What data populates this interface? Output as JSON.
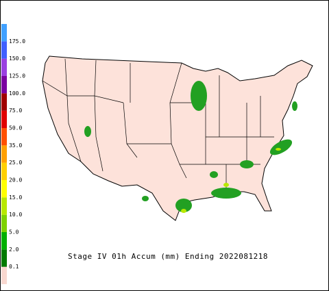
{
  "legend": {
    "labels": [
      "0.1",
      "2.0",
      "5.0",
      "10.0",
      "15.0",
      "20.0",
      "25.0",
      "35.0",
      "50.0",
      "75.0",
      "100.0",
      "125.0",
      "150.0",
      "175.0"
    ],
    "colors": [
      "#f8d8d0",
      "#007a00",
      "#00b000",
      "#7ed200",
      "#b8e800",
      "#ffff00",
      "#ffd000",
      "#ffa000",
      "#ff5000",
      "#e00000",
      "#a00000",
      "#7a00a0",
      "#9a40e0",
      "#4060ff",
      "#40a0ff"
    ]
  },
  "caption": "Stage IV 01h Accum (mm) Ending 2022081218"
}
